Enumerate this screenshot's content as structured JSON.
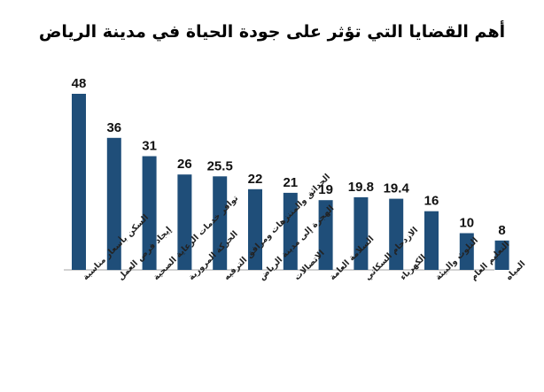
{
  "chart_data": {
    "type": "bar",
    "title": "أهم القضايا التي تؤثر على جودة الحياة في مدينة الرياض",
    "xlabel": "",
    "ylabel": "",
    "ylim": [
      0,
      48
    ],
    "grid": false,
    "bar_color": "#1F4E79",
    "baseline_color": "#a6a6a6",
    "categories": [
      "السكن بأسعار مناسبة",
      "إيجاد فرص العمل",
      "توافر خدمات الرعاية الصحية",
      "الحركة المرورية",
      "الحدائق والمتنزهات ومرافق الترفيه",
      "الهجرة إلى مدينة الرياض",
      "الاتصالات",
      "السلامة العامة",
      "الازدحام السكاني",
      "الكهرباء",
      "التلوث والبيئة",
      "التعليم العام",
      "المياه"
    ],
    "values": [
      48,
      36,
      31,
      26,
      25.5,
      22,
      21,
      19,
      19.8,
      19.4,
      16,
      10,
      8
    ],
    "value_labels": [
      "48",
      "36",
      "31",
      "26",
      "25.5",
      "22",
      "21",
      "19",
      "19.8",
      "19.4",
      "16",
      "10",
      "8"
    ]
  }
}
